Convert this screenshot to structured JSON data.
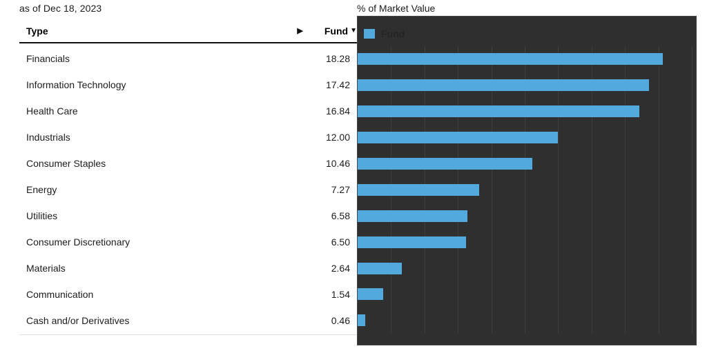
{
  "meta": {
    "as_of": "as of Dec 18, 2023"
  },
  "table": {
    "headers": {
      "type": "Type",
      "fund": "Fund",
      "expand_icon": "▶",
      "sort_icon": "▼"
    },
    "rows": [
      {
        "type": "Financials",
        "fund": "18.28"
      },
      {
        "type": "Information Technology",
        "fund": "17.42"
      },
      {
        "type": "Health Care",
        "fund": "16.84"
      },
      {
        "type": "Industrials",
        "fund": "12.00"
      },
      {
        "type": "Consumer Staples",
        "fund": "10.46"
      },
      {
        "type": "Energy",
        "fund": "7.27"
      },
      {
        "type": "Utilities",
        "fund": "6.58"
      },
      {
        "type": "Consumer Discretionary",
        "fund": "6.50"
      },
      {
        "type": "Materials",
        "fund": "2.64"
      },
      {
        "type": "Communication",
        "fund": "1.54"
      },
      {
        "type": "Cash and/or Derivatives",
        "fund": "0.46"
      }
    ]
  },
  "chart": {
    "title": "% of Market Value",
    "legend_label": "Fund"
  },
  "chart_data": {
    "type": "bar",
    "orientation": "horizontal",
    "title": "% of Market Value",
    "categories": [
      "Financials",
      "Information Technology",
      "Health Care",
      "Industrials",
      "Consumer Staples",
      "Energy",
      "Utilities",
      "Consumer Discretionary",
      "Materials",
      "Communication",
      "Cash and/or Derivatives"
    ],
    "series": [
      {
        "name": "Fund",
        "values": [
          18.28,
          17.42,
          16.84,
          12.0,
          10.46,
          7.27,
          6.58,
          6.5,
          2.64,
          1.54,
          0.46
        ]
      }
    ],
    "xlim": [
      0,
      20
    ],
    "gridline_step": 2,
    "grid": true,
    "legend_position": "top-left",
    "colors": {
      "bar": "#51a9de",
      "plot_background": "#2f2f2f",
      "gridline": "#3e3e3e",
      "legend_text": "#242424"
    }
  }
}
